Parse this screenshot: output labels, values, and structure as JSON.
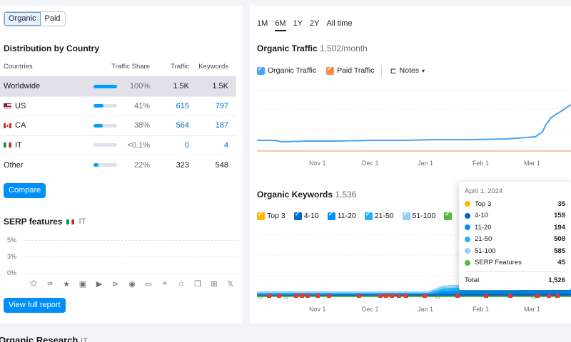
{
  "traffic_tabs": [
    "Organic",
    "Paid"
  ],
  "distribution": {
    "title": "Distribution by Country",
    "headers": {
      "countries": "Countries",
      "share": "Traffic Share",
      "traffic": "Traffic",
      "keywords": "Keywords"
    },
    "rows": [
      {
        "country": "Worldwide",
        "share": "100%",
        "share_value": 1.0,
        "traffic": "1.5K",
        "keywords": "1.5K"
      },
      {
        "country": "US",
        "share": "41%",
        "share_value": 0.41,
        "traffic": "615",
        "keywords": "797"
      },
      {
        "country": "CA",
        "share": "38%",
        "share_value": 0.38,
        "traffic": "564",
        "keywords": "187"
      },
      {
        "country": "IT",
        "share": "<0.1%",
        "share_value": 0.0,
        "traffic": "0",
        "keywords": "4"
      },
      {
        "country": "Other",
        "share": "22%",
        "share_value": 0.22,
        "traffic": "323",
        "keywords": "548"
      }
    ],
    "compare_label": "Compare"
  },
  "serp": {
    "title": "SERP features",
    "country": "IT",
    "y_ticks": [
      "5%",
      "3%",
      "0%"
    ],
    "icons": [
      "featured-snippet-icon",
      "link-icon",
      "star-icon",
      "image-icon",
      "video-icon",
      "video-carousel-icon",
      "play-icon",
      "review-icon",
      "local-pack-icon",
      "knowledge-icon",
      "document-icon",
      "briefcase-icon",
      "x-twitter-icon"
    ],
    "view_label": "View full report"
  },
  "periods": [
    "1M",
    "6M",
    "1Y",
    "2Y",
    "All time"
  ],
  "organic_traffic": {
    "title": "Organic Traffic",
    "value": "1,502/month",
    "legend": [
      "Organic Traffic",
      "Paid Traffic"
    ],
    "notes_label": "Notes",
    "x_labels": [
      "Nov 1",
      "Dec 1",
      "Jan 1",
      "Feb 1",
      "Mar 1"
    ]
  },
  "organic_keywords": {
    "title": "Organic Keywords",
    "value": "1,536",
    "legend": [
      "Top 3",
      "4-10",
      "11-20",
      "21-50",
      "51-100"
    ],
    "x_labels": [
      "Nov 1",
      "Dec 1",
      "Jan 1",
      "Feb 1",
      "Mar 1"
    ]
  },
  "tooltip": {
    "date": "April 1, 2024",
    "rows": [
      {
        "label": "Top 3",
        "value": "35",
        "color": "#ffb800"
      },
      {
        "label": "4-10",
        "value": "159",
        "color": "#0066c6"
      },
      {
        "label": "11-20",
        "value": "194",
        "color": "#008ff8"
      },
      {
        "label": "21-50",
        "value": "508",
        "color": "#28b0f5"
      },
      {
        "label": "51-100",
        "value": "585",
        "color": "#8fd1fb"
      },
      {
        "label": "SERP Features",
        "value": "45",
        "color": "#59b83b"
      }
    ],
    "total_label": "Total",
    "total_value": "1,526"
  },
  "bottom": {
    "title": "Organic Research",
    "country": "IT"
  },
  "colors": {
    "accent": "#008ff8",
    "organic": "#4aa3f0",
    "paid": "#ff8c43",
    "selected_row": "#e0e1e9"
  }
}
